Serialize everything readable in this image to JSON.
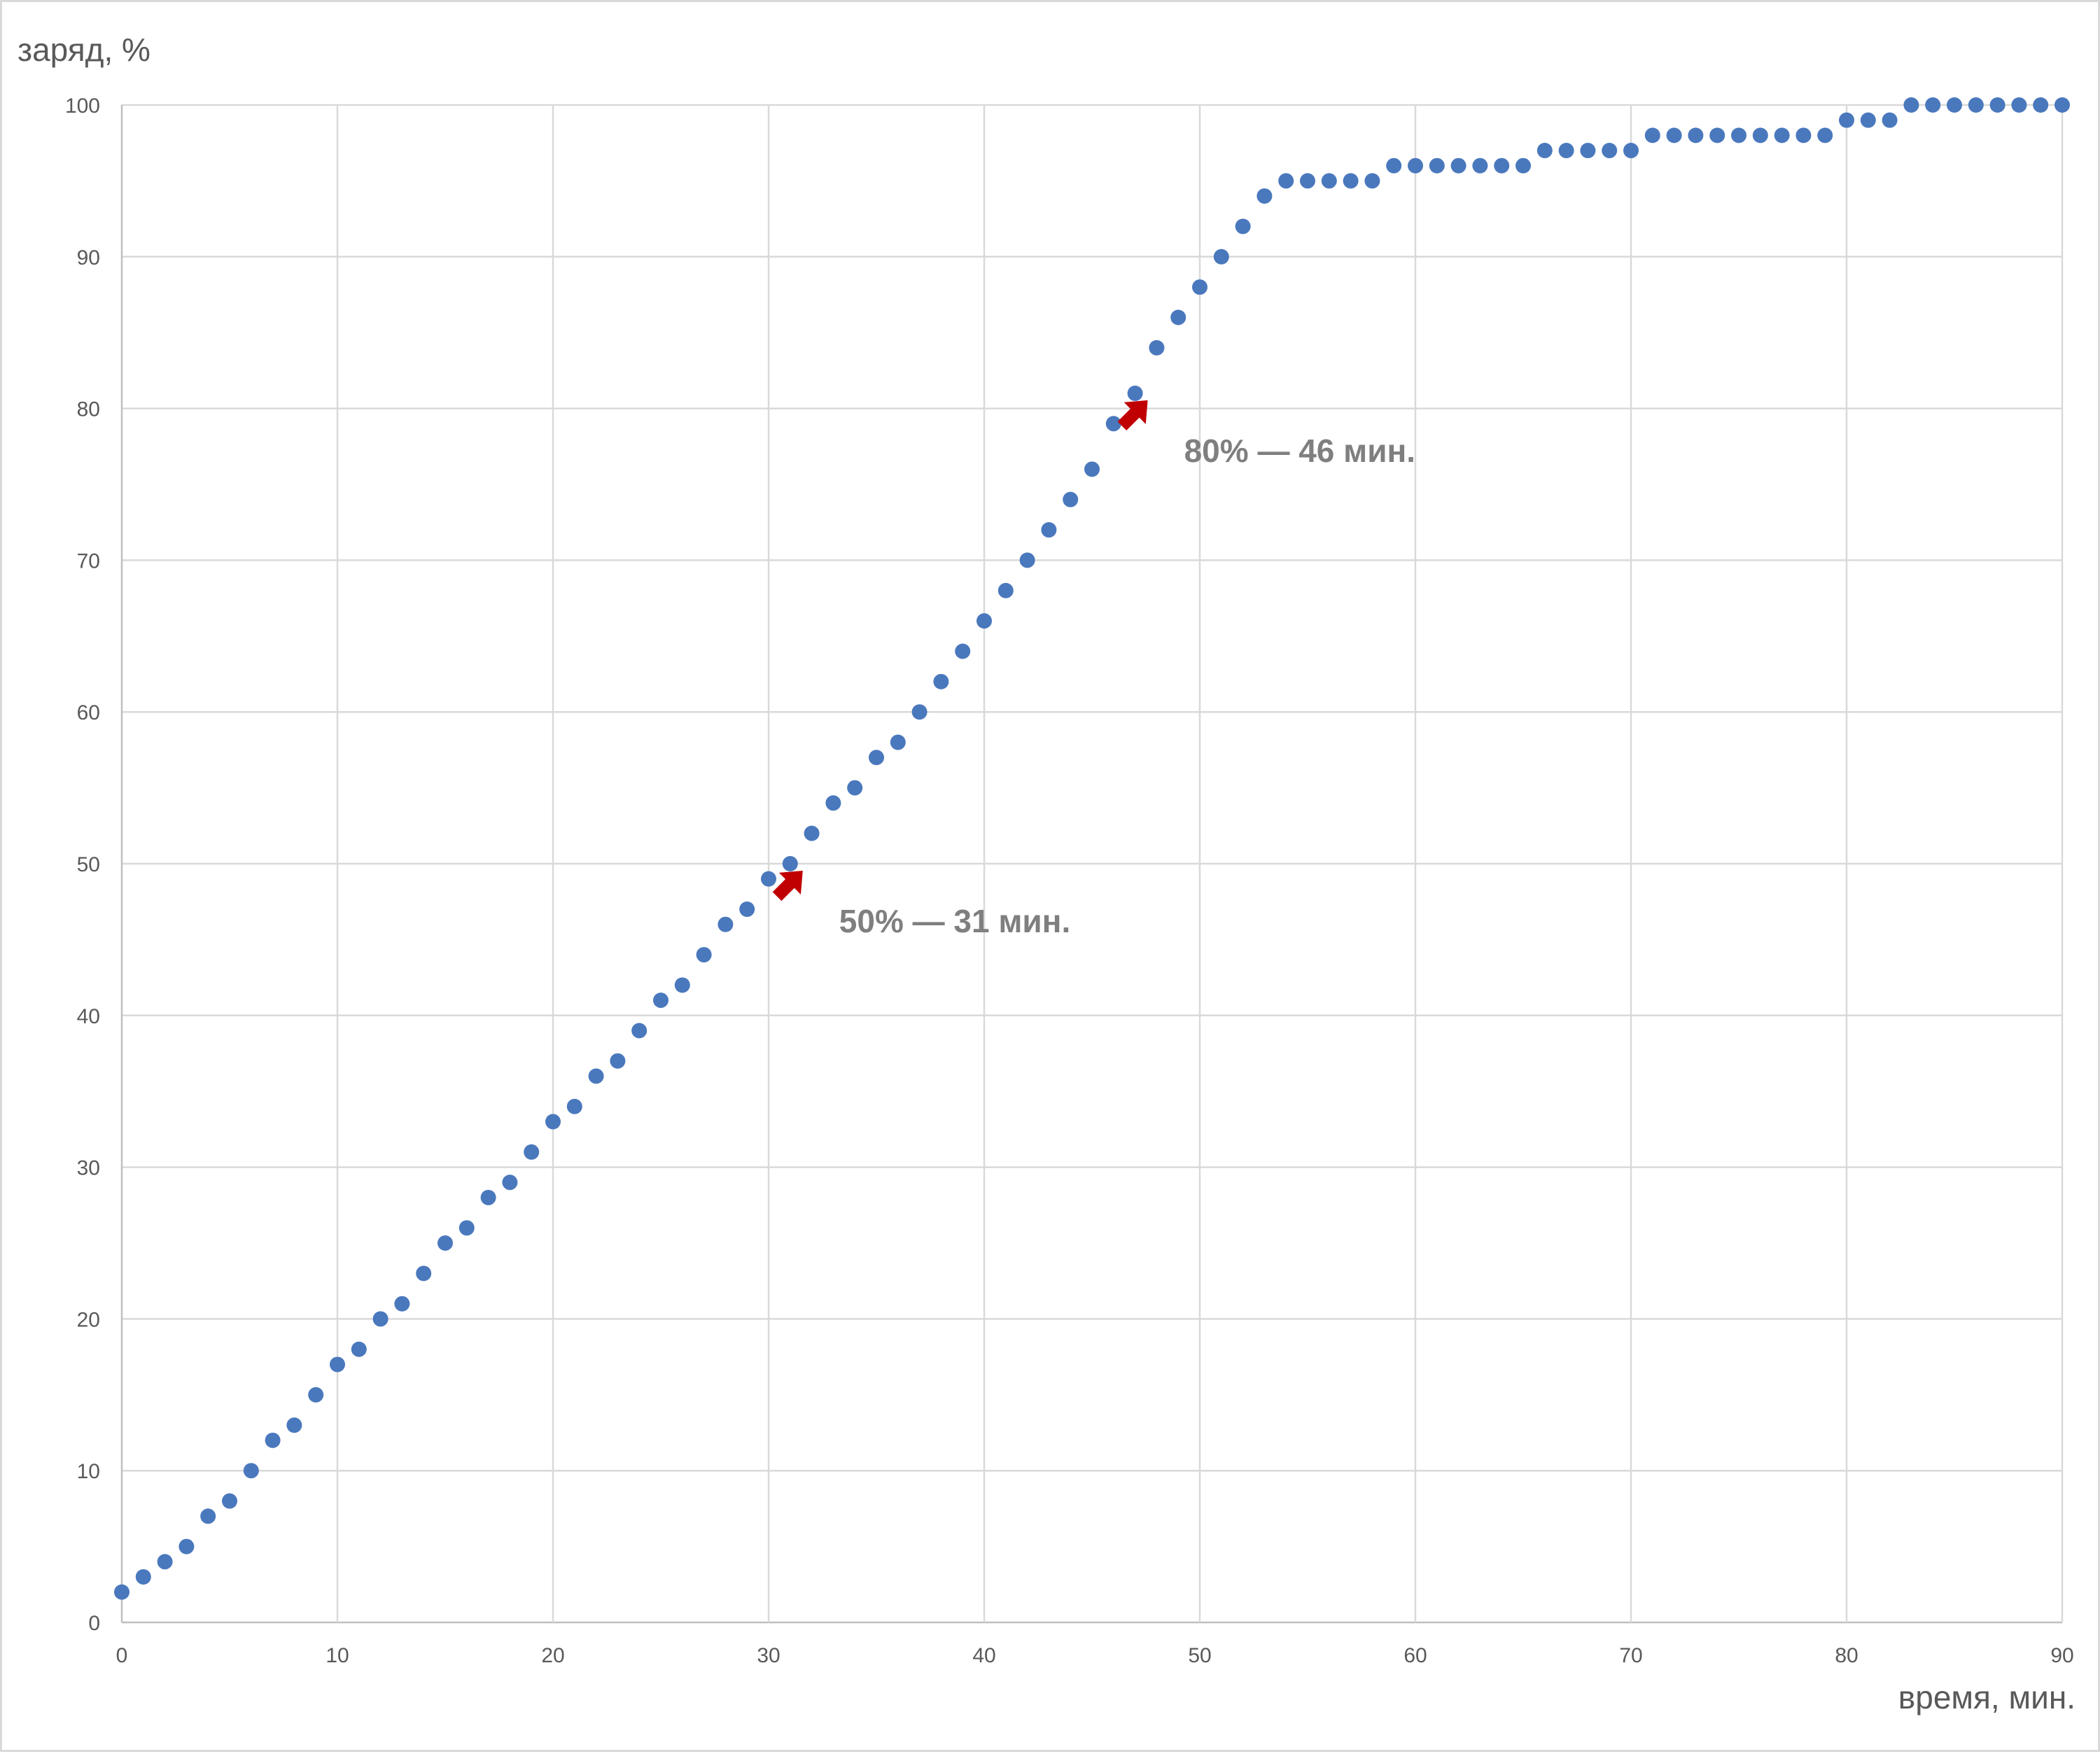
{
  "chart_data": {
    "type": "scatter",
    "xlabel": "время, мин.",
    "ylabel": "заряд, %",
    "xlim": [
      0,
      90
    ],
    "ylim": [
      0,
      100
    ],
    "x_ticks": [
      0,
      10,
      20,
      30,
      40,
      50,
      60,
      70,
      80,
      90
    ],
    "y_ticks": [
      0,
      10,
      20,
      30,
      40,
      50,
      60,
      70,
      80,
      90,
      100
    ],
    "grid": true,
    "marker_color": "#4a78bd",
    "series": [
      {
        "x": [
          0,
          1,
          2,
          3,
          4,
          5,
          6,
          7,
          8,
          9,
          10,
          11,
          12,
          13,
          14,
          15,
          16,
          17,
          18,
          19,
          20,
          21,
          22,
          23,
          24,
          25,
          26,
          27,
          28,
          29,
          30,
          31,
          32,
          33,
          34,
          35,
          36,
          37,
          38,
          39,
          40,
          41,
          42,
          43,
          44,
          45,
          46,
          47,
          48,
          49,
          50,
          51,
          52,
          53,
          54,
          55,
          56,
          57,
          58,
          59,
          60,
          61,
          62,
          63,
          64,
          65,
          66,
          67,
          68,
          69,
          70,
          71,
          72,
          73,
          74,
          75,
          76,
          77,
          78,
          79,
          80,
          81,
          82,
          83,
          84,
          85,
          86,
          87,
          88,
          89,
          90
        ],
        "values": [
          2,
          3,
          4,
          5,
          7,
          8,
          10,
          12,
          13,
          15,
          17,
          18,
          20,
          21,
          23,
          25,
          26,
          28,
          29,
          31,
          33,
          34,
          36,
          37,
          39,
          41,
          42,
          44,
          46,
          47,
          49,
          50,
          52,
          54,
          55,
          57,
          58,
          60,
          62,
          64,
          66,
          68,
          70,
          72,
          74,
          76,
          79,
          81,
          84,
          86,
          88,
          90,
          92,
          94,
          95,
          95,
          95,
          95,
          95,
          96,
          96,
          96,
          96,
          96,
          96,
          96,
          97,
          97,
          97,
          97,
          97,
          98,
          98,
          98,
          98,
          98,
          98,
          98,
          98,
          98,
          99,
          99,
          99,
          100,
          100,
          100,
          100,
          100,
          100,
          100,
          100
        ]
      }
    ],
    "annotations": [
      {
        "text": "50% — 31 мин.",
        "x": 31,
        "y": 50,
        "arrow_color": "#c00000"
      },
      {
        "text": "80% — 46 мин.",
        "x": 47,
        "y": 81,
        "arrow_color": "#c00000"
      }
    ]
  }
}
